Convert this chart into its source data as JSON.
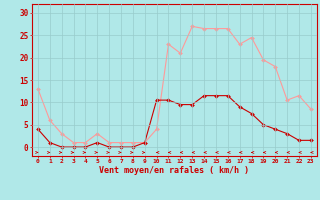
{
  "hours": [
    0,
    1,
    2,
    3,
    4,
    5,
    6,
    7,
    8,
    9,
    10,
    11,
    12,
    13,
    14,
    15,
    16,
    17,
    18,
    19,
    20,
    21,
    22,
    23
  ],
  "mean_wind": [
    4,
    1,
    0,
    0,
    0,
    1,
    0,
    0,
    0,
    1,
    10.5,
    10.5,
    9.5,
    9.5,
    11.5,
    11.5,
    11.5,
    9,
    7.5,
    5,
    4,
    3,
    1.5,
    1.5
  ],
  "gusts": [
    13,
    6,
    3,
    1,
    1,
    3,
    1,
    1,
    1,
    1,
    4,
    23,
    21,
    27,
    26.5,
    26.5,
    26.5,
    23,
    24.5,
    19.5,
    18,
    10.5,
    11.5,
    8.5
  ],
  "mean_color": "#cc0000",
  "gust_color": "#ff9999",
  "bg_color": "#b0e8e8",
  "grid_color": "#99cccc",
  "xlabel": "Vent moyen/en rafales ( km/h )",
  "ylabel_ticks": [
    0,
    5,
    10,
    15,
    20,
    25,
    30
  ],
  "ylim": [
    -2,
    32
  ],
  "xlim": [
    -0.5,
    23.5
  ]
}
